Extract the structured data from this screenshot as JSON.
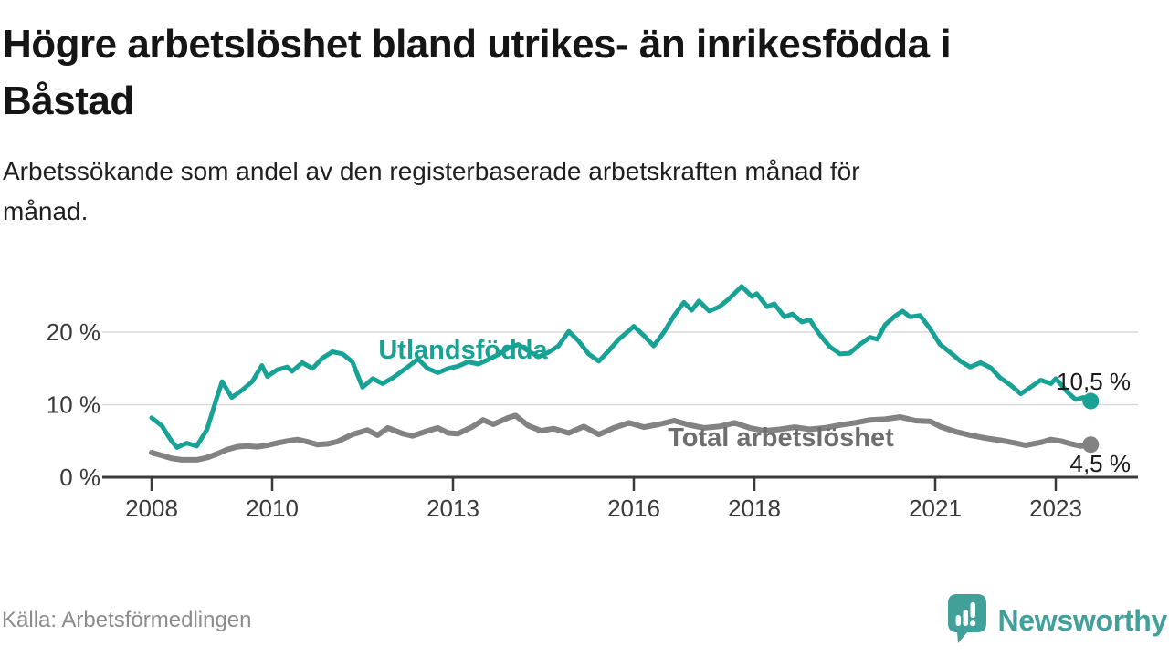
{
  "header": {
    "title": "Högre arbetslöshet bland utrikes- än inrikesfödda i Båstad",
    "title_lines": [
      "Högre arbetslöshet bland utrikes- än inrikesfödda i",
      "Båstad"
    ],
    "subtitle": "Arbetssökande som andel av den registerbaserade arbetskraften månad för månad.",
    "subtitle_lines": [
      "Arbetssökande som andel av den registerbaserade arbetskraften månad för",
      "månad."
    ]
  },
  "footer": {
    "source": "Källa: Arbetsförmedlingen",
    "brand_name": "Newsworthy",
    "brand_icon": "bar-chart-speech-bubble-icon"
  },
  "colors": {
    "series_foreign": "#17a295",
    "series_total": "#828282",
    "series_total_label": "#6e6e6e",
    "annotation": "#1a1a1a",
    "axis": "#3a3a3a",
    "grid": "#d9d9d9",
    "title": "#151515",
    "subtitle": "#1f1f1f",
    "source": "#8c8c8c",
    "brand": "#41a09a"
  },
  "chart_data": {
    "type": "line",
    "title": "Högre arbetslöshet bland utrikes- än inrikesfödda i Båstad",
    "subtitle": "Arbetssökande som andel av den registerbaserade arbetskraften månad för månad.",
    "source": "Källa: Arbetsförmedlingen",
    "x_axis": {
      "ticks": [
        2008,
        2010,
        2013,
        2016,
        2018,
        2021,
        2023
      ],
      "range": [
        2008,
        2023.58
      ],
      "grid": false
    },
    "y_axis": {
      "ticks": [
        0,
        10,
        20
      ],
      "tick_labels": [
        "0 %",
        "10 %",
        "20 %"
      ],
      "gridlines": [
        10,
        20
      ],
      "range": [
        0,
        27.5
      ],
      "unit": "%"
    },
    "legend_position": "inline-labels",
    "series": [
      {
        "name": "Utlandsfödda",
        "color": "#17a295",
        "label_color": "#17a295",
        "end_label": "10,5 %",
        "end_value": 10.5,
        "points": [
          [
            2008.0,
            8.2
          ],
          [
            2008.17,
            7.1
          ],
          [
            2008.33,
            5.0
          ],
          [
            2008.42,
            4.1
          ],
          [
            2008.58,
            4.7
          ],
          [
            2008.75,
            4.3
          ],
          [
            2008.92,
            6.6
          ],
          [
            2009.08,
            10.9
          ],
          [
            2009.17,
            13.2
          ],
          [
            2009.33,
            11.0
          ],
          [
            2009.5,
            12.0
          ],
          [
            2009.67,
            13.2
          ],
          [
            2009.83,
            15.4
          ],
          [
            2009.92,
            13.9
          ],
          [
            2010.08,
            14.8
          ],
          [
            2010.25,
            15.2
          ],
          [
            2010.33,
            14.6
          ],
          [
            2010.5,
            15.8
          ],
          [
            2010.67,
            15.0
          ],
          [
            2010.83,
            16.4
          ],
          [
            2011.0,
            17.3
          ],
          [
            2011.17,
            17.0
          ],
          [
            2011.33,
            15.9
          ],
          [
            2011.5,
            12.4
          ],
          [
            2011.67,
            13.6
          ],
          [
            2011.83,
            12.9
          ],
          [
            2012.0,
            13.7
          ],
          [
            2012.25,
            15.2
          ],
          [
            2012.42,
            16.3
          ],
          [
            2012.58,
            15.0
          ],
          [
            2012.75,
            14.4
          ],
          [
            2012.92,
            15.0
          ],
          [
            2013.08,
            15.3
          ],
          [
            2013.25,
            15.9
          ],
          [
            2013.42,
            15.6
          ],
          [
            2013.58,
            16.2
          ],
          [
            2013.75,
            16.9
          ],
          [
            2013.92,
            17.8
          ],
          [
            2014.08,
            18.3
          ],
          [
            2014.25,
            17.4
          ],
          [
            2014.42,
            16.6
          ],
          [
            2014.58,
            17.2
          ],
          [
            2014.75,
            18.1
          ],
          [
            2014.92,
            20.1
          ],
          [
            2015.08,
            18.8
          ],
          [
            2015.25,
            17.0
          ],
          [
            2015.42,
            16.0
          ],
          [
            2015.58,
            17.4
          ],
          [
            2015.75,
            19.0
          ],
          [
            2015.92,
            20.2
          ],
          [
            2016.0,
            20.8
          ],
          [
            2016.17,
            19.5
          ],
          [
            2016.33,
            18.1
          ],
          [
            2016.5,
            20.0
          ],
          [
            2016.67,
            22.3
          ],
          [
            2016.83,
            24.1
          ],
          [
            2016.96,
            23.0
          ],
          [
            2017.08,
            24.3
          ],
          [
            2017.25,
            22.9
          ],
          [
            2017.42,
            23.5
          ],
          [
            2017.58,
            24.6
          ],
          [
            2017.79,
            26.3
          ],
          [
            2017.96,
            24.9
          ],
          [
            2018.04,
            25.3
          ],
          [
            2018.21,
            23.5
          ],
          [
            2018.33,
            23.9
          ],
          [
            2018.5,
            22.1
          ],
          [
            2018.63,
            22.5
          ],
          [
            2018.79,
            21.4
          ],
          [
            2018.92,
            21.7
          ],
          [
            2019.08,
            19.7
          ],
          [
            2019.25,
            18.0
          ],
          [
            2019.42,
            17.0
          ],
          [
            2019.58,
            17.1
          ],
          [
            2019.75,
            18.3
          ],
          [
            2019.92,
            19.3
          ],
          [
            2020.04,
            19.0
          ],
          [
            2020.17,
            21.0
          ],
          [
            2020.33,
            22.2
          ],
          [
            2020.46,
            22.9
          ],
          [
            2020.58,
            22.1
          ],
          [
            2020.75,
            22.3
          ],
          [
            2020.92,
            20.4
          ],
          [
            2021.08,
            18.3
          ],
          [
            2021.25,
            17.2
          ],
          [
            2021.42,
            16.0
          ],
          [
            2021.58,
            15.2
          ],
          [
            2021.75,
            15.8
          ],
          [
            2021.92,
            15.1
          ],
          [
            2022.08,
            13.7
          ],
          [
            2022.25,
            12.7
          ],
          [
            2022.42,
            11.5
          ],
          [
            2022.58,
            12.4
          ],
          [
            2022.75,
            13.4
          ],
          [
            2022.92,
            12.9
          ],
          [
            2023.0,
            13.6
          ],
          [
            2023.21,
            11.6
          ],
          [
            2023.33,
            10.7
          ],
          [
            2023.46,
            11.0
          ],
          [
            2023.58,
            10.5
          ]
        ]
      },
      {
        "name": "Total arbetslöshet",
        "color": "#828282",
        "label_color": "#6e6e6e",
        "end_label": "4,5 %",
        "end_value": 4.5,
        "points": [
          [
            2008.0,
            3.4
          ],
          [
            2008.17,
            3.0
          ],
          [
            2008.33,
            2.6
          ],
          [
            2008.5,
            2.4
          ],
          [
            2008.75,
            2.4
          ],
          [
            2008.92,
            2.7
          ],
          [
            2009.08,
            3.2
          ],
          [
            2009.25,
            3.8
          ],
          [
            2009.42,
            4.2
          ],
          [
            2009.58,
            4.3
          ],
          [
            2009.75,
            4.2
          ],
          [
            2009.92,
            4.4
          ],
          [
            2010.08,
            4.7
          ],
          [
            2010.25,
            5.0
          ],
          [
            2010.42,
            5.2
          ],
          [
            2010.58,
            4.9
          ],
          [
            2010.75,
            4.5
          ],
          [
            2010.92,
            4.6
          ],
          [
            2011.08,
            4.9
          ],
          [
            2011.33,
            5.9
          ],
          [
            2011.58,
            6.5
          ],
          [
            2011.75,
            5.8
          ],
          [
            2011.92,
            6.8
          ],
          [
            2012.17,
            6.0
          ],
          [
            2012.33,
            5.7
          ],
          [
            2012.58,
            6.4
          ],
          [
            2012.75,
            6.8
          ],
          [
            2012.92,
            6.1
          ],
          [
            2013.08,
            6.0
          ],
          [
            2013.33,
            7.0
          ],
          [
            2013.5,
            7.9
          ],
          [
            2013.67,
            7.3
          ],
          [
            2013.92,
            8.2
          ],
          [
            2014.04,
            8.5
          ],
          [
            2014.25,
            7.1
          ],
          [
            2014.46,
            6.4
          ],
          [
            2014.67,
            6.7
          ],
          [
            2014.92,
            6.1
          ],
          [
            2015.17,
            7.0
          ],
          [
            2015.42,
            5.9
          ],
          [
            2015.67,
            6.8
          ],
          [
            2015.92,
            7.5
          ],
          [
            2016.17,
            6.9
          ],
          [
            2016.42,
            7.3
          ],
          [
            2016.67,
            7.8
          ],
          [
            2016.92,
            7.2
          ],
          [
            2017.17,
            6.8
          ],
          [
            2017.42,
            7.0
          ],
          [
            2017.67,
            7.5
          ],
          [
            2017.92,
            6.8
          ],
          [
            2018.17,
            6.4
          ],
          [
            2018.42,
            6.6
          ],
          [
            2018.67,
            6.9
          ],
          [
            2018.92,
            6.6
          ],
          [
            2019.17,
            6.8
          ],
          [
            2019.42,
            7.2
          ],
          [
            2019.67,
            7.5
          ],
          [
            2019.92,
            7.9
          ],
          [
            2020.17,
            8.0
          ],
          [
            2020.42,
            8.3
          ],
          [
            2020.67,
            7.8
          ],
          [
            2020.92,
            7.7
          ],
          [
            2021.08,
            7.0
          ],
          [
            2021.33,
            6.3
          ],
          [
            2021.58,
            5.8
          ],
          [
            2021.83,
            5.4
          ],
          [
            2022.08,
            5.1
          ],
          [
            2022.33,
            4.7
          ],
          [
            2022.5,
            4.4
          ],
          [
            2022.75,
            4.8
          ],
          [
            2022.92,
            5.2
          ],
          [
            2023.08,
            5.0
          ],
          [
            2023.25,
            4.6
          ],
          [
            2023.42,
            4.3
          ],
          [
            2023.58,
            4.5
          ]
        ]
      }
    ]
  }
}
